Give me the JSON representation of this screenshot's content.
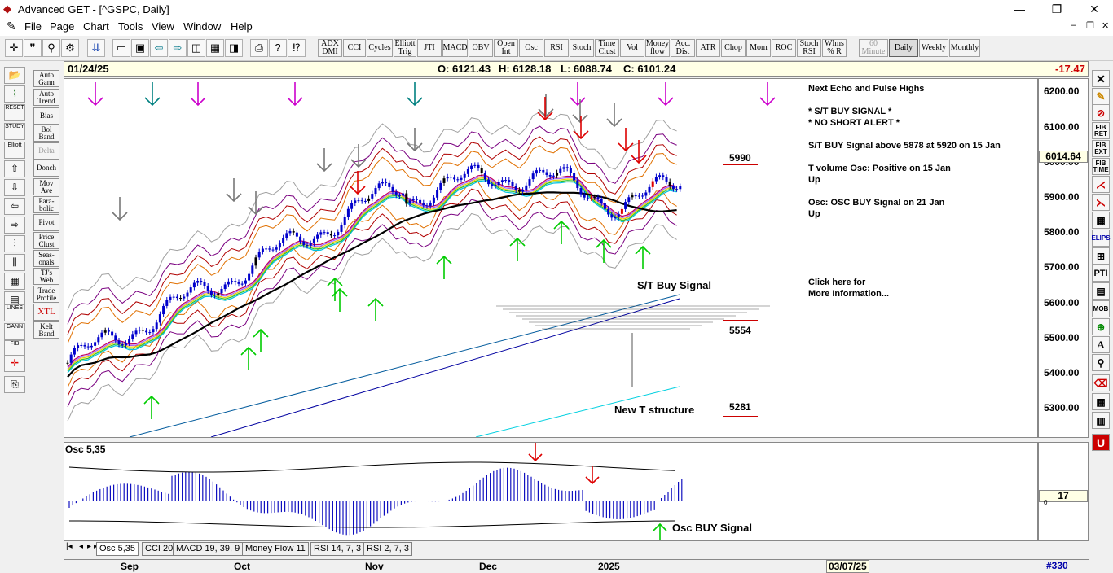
{
  "window": {
    "title": "Advanced GET - [^GSPC, Daily]"
  },
  "menu": [
    "File",
    "Page",
    "Chart",
    "Tools",
    "View",
    "Window",
    "Help"
  ],
  "toolbar": {
    "studies": [
      "ADX DMI",
      "CCI",
      "Cycles",
      "Elliott Trig",
      "JTI",
      "MACD",
      "OBV",
      "Open Int",
      "Osc",
      "RSI",
      "Stoch",
      "Time Clust",
      "Vol",
      "Money flow",
      "Acc. Dist",
      "ATR",
      "Chop",
      "Mom",
      "ROC",
      "Stoch RSI",
      "Wlms % R"
    ],
    "periods": [
      "60 Minute",
      "Daily",
      "Weekly",
      "Monthly"
    ],
    "selected_period": "Daily"
  },
  "left_studies": [
    "Auto Gann",
    "Auto Trend",
    "Bias",
    "Bol Band",
    "Delta",
    "Donch",
    "Mov Ave",
    "Para- bolic",
    "Pivot",
    "Price Clust",
    "Seas- onals",
    "TJ's Web",
    "Trade Profile",
    "XTL",
    "Kelt Band"
  ],
  "left_icons": [
    "RESET",
    "STUDY",
    "Elliott",
    "LINES",
    "GANN",
    "FIB"
  ],
  "right_icons": [
    "FIB RET",
    "FIB EXT",
    "FIB TIME",
    "ELIPS",
    "PTI",
    "MOB",
    "A"
  ],
  "info_bar": {
    "date": "01/24/25",
    "open": "O: 6121.43",
    "high": "H: 6128.18",
    "low": "L: 6088.74",
    "close": "C: 6101.24",
    "change": "-17.47"
  },
  "price_axis": {
    "ticks": [
      "6200.00",
      "6100.00",
      "6000.00",
      "5900.00",
      "5800.00",
      "5700.00",
      "5600.00",
      "5500.00",
      "5400.00",
      "5300.00"
    ],
    "current_price": "6014.64"
  },
  "annotations": {
    "st_buy_signal": "S/T Buy Signal",
    "new_t_structure": "New T structure",
    "level_5990": "5990",
    "level_5554": "5554",
    "level_5281": "5281",
    "next_echo": "Next Echo and Pulse Highs",
    "st_buy": "* S/T BUY SIGNAL *",
    "no_short": "* NO SHORT ALERT *",
    "st_buy_above": "S/T BUY Signal above 5878 at 5920 on 15 Jan",
    "tvol_1": "T volume Osc: Positive on 15 Jan",
    "tvol_2": "Up",
    "osc_1": "Osc: OSC BUY Signal on 21 Jan",
    "osc_2": "Up",
    "click_1": "Click here for",
    "click_2": "More Information..."
  },
  "osc": {
    "label": "Osc 5,35",
    "buy_signal": "Osc BUY Signal",
    "value": "17",
    "zero": "0"
  },
  "tabs": [
    "Osc 5,35",
    "CCI 20",
    "MACD 19, 39, 9",
    "Money Flow 11",
    "RSI 14, 7, 3",
    "RSI 2, 7, 3"
  ],
  "time_axis": [
    "Sep",
    "Oct",
    "Nov",
    "Dec",
    "2025"
  ],
  "future_date": "03/07/25",
  "bar_count": "#330",
  "colors": {
    "blue_bar": "#0000cc",
    "red_bar": "#dd0000",
    "black_bar": "#000000",
    "green_arrow": "#00cc00",
    "magenta_arrow": "#cc00cc",
    "teal_arrow": "#008080"
  }
}
